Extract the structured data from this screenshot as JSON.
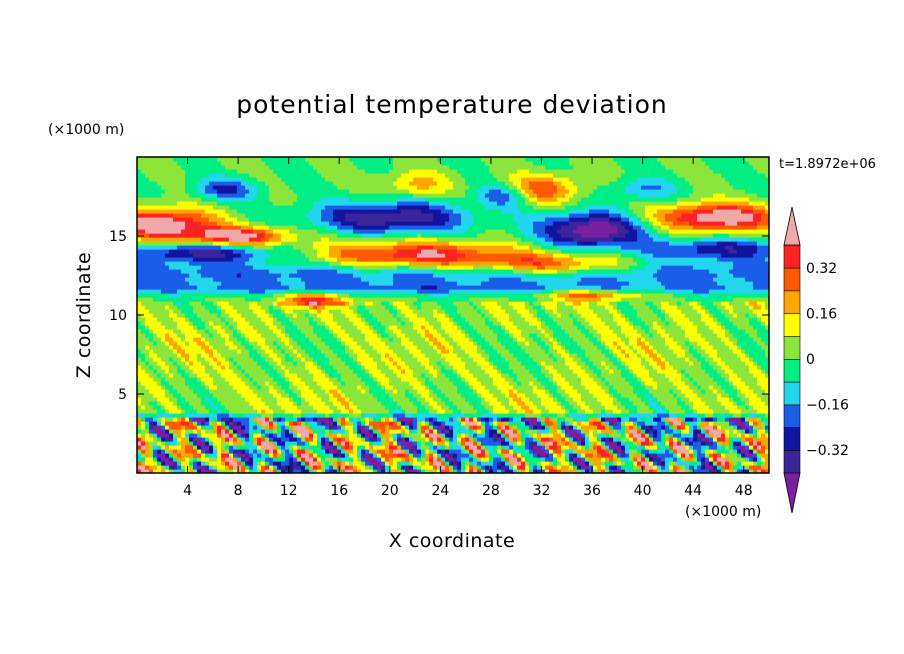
{
  "chart_data": {
    "type": "heatmap",
    "title": "potential temperature deviation",
    "xlabel": "X coordinate",
    "ylabel": "Z coordinate",
    "x_unit": "(×1000 m)",
    "y_unit": "(×1000 m)",
    "time_label": "t=1.8972e+06",
    "xlim": [
      0,
      50
    ],
    "ylim": [
      0,
      20
    ],
    "x_ticks": [
      4,
      8,
      12,
      16,
      20,
      24,
      28,
      32,
      36,
      40,
      44,
      48
    ],
    "y_ticks": [
      5,
      10,
      15
    ],
    "colorbar": {
      "levels": [
        -0.4,
        -0.32,
        -0.24,
        -0.16,
        -0.08,
        0,
        0.08,
        0.16,
        0.24,
        0.32,
        0.4
      ],
      "labels": [
        "0.32",
        "0.16",
        "0",
        "-0.16",
        "-0.32"
      ],
      "label_values": [
        0.32,
        0.16,
        0,
        -0.16,
        -0.32
      ],
      "colors_low_to_high": [
        "#7a1fa0",
        "#3b2599",
        "#10149e",
        "#1a5de8",
        "#22d6f0",
        "#00ee83",
        "#8ce53a",
        "#ffff00",
        "#ffa500",
        "#ff5a00",
        "#ff2222",
        "#f0a8a8"
      ],
      "extend": "both"
    },
    "field_description_bands": [
      {
        "z_range": [
          0,
          3.5
        ],
        "pattern": "mixed strong positive and negative cells (boundary-layer convection)"
      },
      {
        "z_range": [
          3.5,
          11
        ],
        "pattern": "mostly near-zero (green) with small positive patches"
      },
      {
        "z_range": [
          11,
          14
        ],
        "pattern": "negative layer (blue/cyan)"
      },
      {
        "z_range": [
          14,
          17
        ],
        "pattern": "strong positive band (red/pink) with negative lobes"
      },
      {
        "z_range": [
          17,
          20
        ],
        "pattern": "near-zero with weak positive/negative eddies"
      }
    ]
  }
}
